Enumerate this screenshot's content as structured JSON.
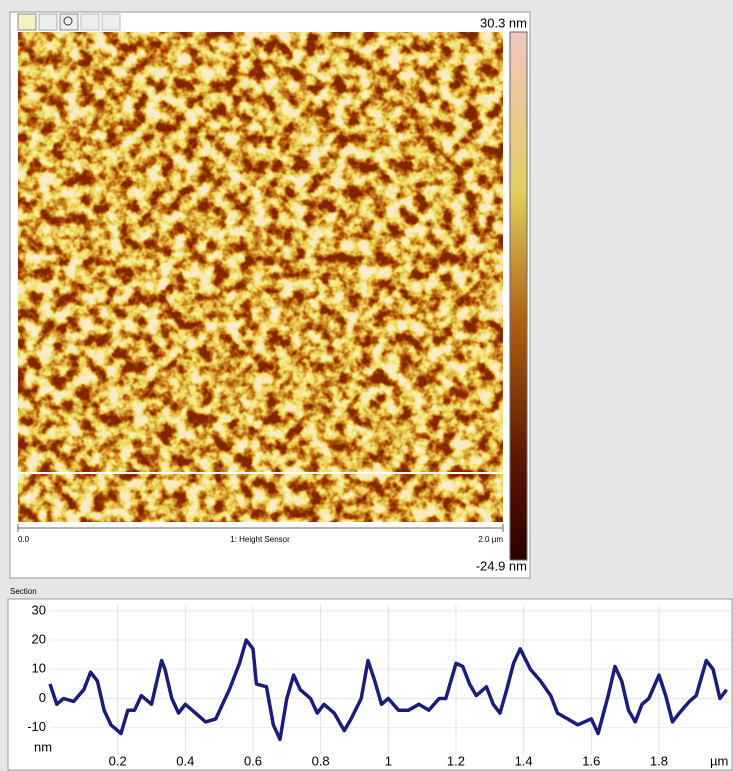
{
  "image_panel": {
    "max_label": "30.3 nm",
    "min_label": "-24.9 nm",
    "x_start": "0.0",
    "channel": "1: Height Sensor",
    "x_end": "2.0 µm"
  },
  "section_label": "Section",
  "chart_data": {
    "type": "line",
    "x_label": "µm",
    "y_label": "nm",
    "color": "#1c1c7a",
    "grid": true,
    "x": [
      0,
      0.02,
      0.04,
      0.07,
      0.1,
      0.12,
      0.14,
      0.16,
      0.18,
      0.21,
      0.23,
      0.25,
      0.27,
      0.3,
      0.33,
      0.34,
      0.36,
      0.38,
      0.4,
      0.43,
      0.46,
      0.49,
      0.51,
      0.53,
      0.56,
      0.58,
      0.6,
      0.61,
      0.64,
      0.66,
      0.68,
      0.7,
      0.72,
      0.74,
      0.77,
      0.79,
      0.81,
      0.84,
      0.87,
      0.89,
      0.92,
      0.94,
      0.96,
      0.98,
      1.0,
      1.03,
      1.06,
      1.09,
      1.12,
      1.15,
      1.17,
      1.2,
      1.22,
      1.24,
      1.26,
      1.29,
      1.31,
      1.33,
      1.35,
      1.37,
      1.39,
      1.42,
      1.45,
      1.48,
      1.5,
      1.53,
      1.56,
      1.6,
      1.62,
      1.65,
      1.67,
      1.69,
      1.71,
      1.73,
      1.75,
      1.77,
      1.8,
      1.82,
      1.84,
      1.86,
      1.89,
      1.91,
      1.94,
      1.96,
      1.98,
      2.0
    ],
    "values": [
      5,
      -2,
      0,
      -1,
      3,
      9,
      6,
      -4,
      -9,
      -12,
      -4,
      -4,
      1,
      -2,
      13,
      10,
      0,
      -5,
      -2,
      -5,
      -8,
      -7,
      -2,
      3,
      12,
      20,
      17,
      5,
      4,
      -9,
      -14,
      0,
      8,
      3,
      0,
      -5,
      -2,
      -5,
      -11,
      -7,
      0,
      13,
      6,
      -2,
      0,
      -4,
      -4,
      -2,
      -4,
      0,
      0,
      12,
      11,
      5,
      1,
      4,
      -2,
      -5,
      3,
      12,
      17,
      10,
      6,
      1,
      -5,
      -7,
      -9,
      -7,
      -12,
      1,
      11,
      6,
      -4,
      -8,
      -2,
      0,
      8,
      1,
      -8,
      -5,
      -1,
      1,
      13,
      10,
      0,
      3
    ],
    "xlim": [
      0,
      2.01
    ],
    "ylim": [
      -19,
      32
    ],
    "xticks": [
      0.2,
      0.4,
      0.6,
      0.8,
      1,
      1.2,
      1.4,
      1.6,
      1.8
    ],
    "yticks": [
      30,
      20,
      10,
      0,
      -10
    ]
  }
}
